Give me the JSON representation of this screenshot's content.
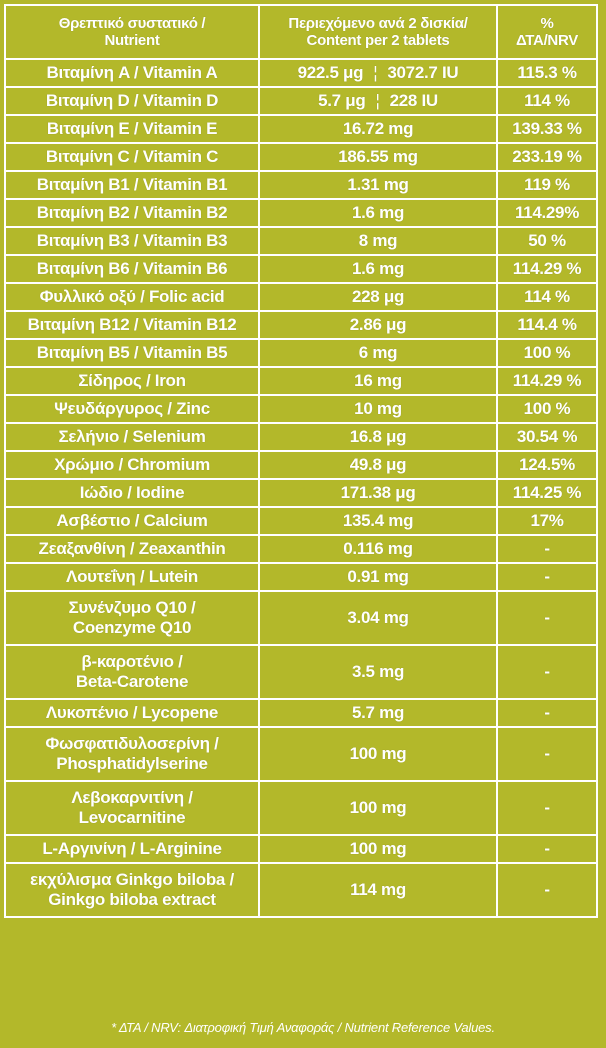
{
  "header": {
    "col1_line1": "Θρεπτικό συστατικό /",
    "col1_line2": "Nutrient",
    "col2_line1": "Περιεχόμενο ανά 2 δισκία/",
    "col2_line2": "Content per 2 tablets",
    "col3_line1": "%",
    "col3_line2": "ΔΤΑ/NRV"
  },
  "rows": [
    {
      "name": "Βιταμίνη A / Vitamin A",
      "amount": "922.5 μg",
      "amount2": "3072.7 IU",
      "nrv": "115.3 %"
    },
    {
      "name": "Βιταμίνη D / Vitamin D",
      "amount": "5.7 μg",
      "amount2": "228 IU",
      "nrv": "114 %"
    },
    {
      "name": "Βιταμίνη E / Vitamin E",
      "amount": "16.72 mg",
      "nrv": "139.33 %"
    },
    {
      "name": "Βιταμίνη C / Vitamin C",
      "amount": "186.55 mg",
      "nrv": "233.19 %"
    },
    {
      "name": "Βιταμίνη B1 / Vitamin B1",
      "amount": "1.31 mg",
      "nrv": "119 %"
    },
    {
      "name": "Βιταμίνη B2 / Vitamin B2",
      "amount": "1.6 mg",
      "nrv": "114.29%"
    },
    {
      "name": "Βιταμίνη B3 / Vitamin B3",
      "amount": "8 mg",
      "nrv": "50 %"
    },
    {
      "name": "Βιταμίνη B6 / Vitamin B6",
      "amount": "1.6 mg",
      "nrv": "114.29 %"
    },
    {
      "name": "Φυλλικό οξύ / Folic acid",
      "amount": "228 μg",
      "nrv": "114 %"
    },
    {
      "name": "Βιταμίνη B12 / Vitamin B12",
      "amount": "2.86 μg",
      "nrv": "114.4 %"
    },
    {
      "name": "Βιταμίνη B5 / Vitamin B5",
      "amount": "6 mg",
      "nrv": "100 %"
    },
    {
      "name": "Σίδηρος / Iron",
      "amount": "16 mg",
      "nrv": "114.29 %"
    },
    {
      "name": "Ψευδάργυρος / Zinc",
      "amount": "10 mg",
      "nrv": "100 %"
    },
    {
      "name": "Σελήνιο / Selenium",
      "amount": "16.8 μg",
      "nrv": "30.54 %"
    },
    {
      "name": "Χρώμιο / Chromium",
      "amount": "49.8 μg",
      "nrv": "124.5%"
    },
    {
      "name": "Ιώδιο / Iodine",
      "amount": "171.38 μg",
      "nrv": "114.25 %"
    },
    {
      "name": "Ασβέστιο / Calcium",
      "amount": "135.4 mg",
      "nrv": "17%"
    },
    {
      "name": "Ζεαξανθίνη / Zeaxanthin",
      "amount": "0.116 mg",
      "nrv": "-"
    },
    {
      "name": "Λουτεΐνη / Lutein",
      "amount": "0.91 mg",
      "nrv": "-"
    },
    {
      "name": "Συνένζυμο Q10 /",
      "name2": "Coenzyme Q10",
      "amount": "3.04 mg",
      "nrv": "-"
    },
    {
      "name": "β-καροτένιο /",
      "name2": "Beta-Carotene",
      "amount": "3.5 mg",
      "nrv": "-"
    },
    {
      "name": "Λυκοπένιο / Lycopene",
      "amount": "5.7 mg",
      "nrv": "-"
    },
    {
      "name": "Φωσφατιδυλοσερίνη /",
      "name2": "Phosphatidylserine",
      "amount": "100 mg",
      "nrv": "-"
    },
    {
      "name": "Λεβοκαρνιτίνη /",
      "name2": "Levocarnitine",
      "amount": "100 mg",
      "nrv": "-"
    },
    {
      "name": "L-Αργινίνη / L-Arginine",
      "amount": "100 mg",
      "nrv": "-"
    },
    {
      "name": "εκχύλισμα Ginkgo biloba /",
      "name2": "Ginkgo biloba extract",
      "amount": "114 mg",
      "nrv": "-"
    }
  ],
  "amount_separator": "¦",
  "footnote": "* ΔΤΑ / NRV: Διατροφική Τιμή Αναφοράς / Nutrient Reference Values.",
  "colors": {
    "background": "#b3b82a",
    "text": "#ffffff",
    "lines": "#ffffff"
  }
}
